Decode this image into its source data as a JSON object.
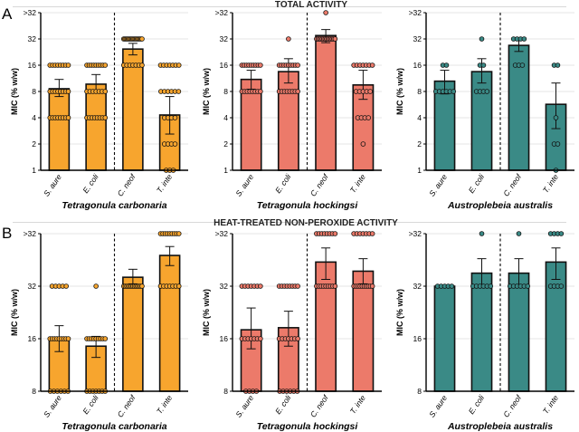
{
  "figure": {
    "row_a_letter": "A",
    "row_b_letter": "B",
    "row_a_title": "TOTAL ACTIVITY",
    "row_b_title": "HEAT-TREATED NON-PEROXIDE ACTIVITY"
  },
  "colors": {
    "orange": "#F7A52E",
    "salmon": "#EC7A6A",
    "teal": "#3A8A86"
  },
  "chart_data": [
    {
      "type": "bar",
      "row": "A",
      "species": "Tetragonula carbonaria",
      "color_key": "orange",
      "ylabel": "MIC (% w/w)",
      "scale": "log2",
      "yticks": [
        "1",
        "2",
        "4",
        "8",
        "16",
        "32",
        ">32"
      ],
      "ytick_values": [
        1,
        2,
        4,
        8,
        16,
        32,
        64
      ],
      "categories": [
        "S. aure",
        "E. coli",
        "C. neof",
        "T. inte"
      ],
      "values": [
        8.6,
        9.7,
        24.5,
        4.3
      ],
      "errors": [
        [
          7,
          11
        ],
        [
          8,
          12.5
        ],
        [
          21,
          28.5
        ],
        [
          2.6,
          7
        ]
      ],
      "points": [
        [
          16,
          16,
          16,
          16,
          16,
          16,
          16,
          16,
          8,
          8,
          8,
          8,
          8,
          8,
          8,
          8,
          4,
          4,
          4,
          4,
          4,
          4,
          4,
          4
        ],
        [
          16,
          16,
          16,
          16,
          16,
          16,
          16,
          16,
          16,
          8,
          8,
          8,
          8,
          8,
          8,
          8,
          4,
          4,
          4,
          4,
          4,
          4,
          4,
          4
        ],
        [
          32,
          32,
          32,
          32,
          32,
          32,
          32,
          32,
          32,
          32,
          32,
          32,
          32,
          32,
          32,
          32,
          32,
          16,
          16,
          16,
          16,
          16,
          16,
          16
        ],
        [
          16,
          16,
          16,
          16,
          16,
          16,
          16,
          8,
          8,
          8,
          8,
          8,
          8,
          4,
          4,
          4,
          4,
          2,
          2,
          2,
          2,
          1,
          1,
          1
        ]
      ],
      "divider_after": 2
    },
    {
      "type": "bar",
      "row": "A",
      "species": "Tetragonula hockingsi",
      "color_key": "salmon",
      "ylabel": "MIC (% w/w)",
      "scale": "log2",
      "yticks": [
        "1",
        "2",
        "4",
        "8",
        "16",
        "32",
        ">32"
      ],
      "ytick_values": [
        1,
        2,
        4,
        8,
        16,
        32,
        64
      ],
      "categories": [
        "S. aure",
        "E. coli",
        "C. neof",
        "T. inte"
      ],
      "values": [
        11,
        13.5,
        35,
        9.5
      ],
      "errors": [
        [
          8.5,
          14
        ],
        [
          10,
          19
        ],
        [
          29,
          41
        ],
        [
          6.5,
          14
        ]
      ],
      "points": [
        [
          16,
          16,
          16,
          16,
          16,
          16,
          16,
          16,
          16,
          8,
          8,
          8,
          8,
          8,
          8,
          8,
          8
        ],
        [
          32,
          16,
          16,
          16,
          16,
          16,
          16,
          16,
          16,
          16,
          8,
          8,
          8,
          8,
          8,
          8,
          8,
          8
        ],
        [
          64,
          32,
          32,
          32,
          32,
          32,
          32,
          32,
          32,
          32,
          32,
          32,
          32,
          32,
          32
        ],
        [
          16,
          16,
          16,
          16,
          16,
          16,
          16,
          8,
          8,
          8,
          8,
          8,
          4,
          4,
          4,
          4,
          2
        ]
      ],
      "divider_after": 2
    },
    {
      "type": "bar",
      "row": "A",
      "species": "Austroplebeia australis",
      "color_key": "teal",
      "ylabel": "MIC (% w/w)",
      "scale": "log2",
      "yticks": [
        "1",
        "2",
        "4",
        "8",
        "16",
        "32",
        ">32"
      ],
      "ytick_values": [
        1,
        2,
        4,
        8,
        16,
        32,
        64
      ],
      "categories": [
        "S. aure",
        "E. coli",
        "C. neof",
        "T. inte"
      ],
      "values": [
        10.5,
        13.5,
        27,
        5.7
      ],
      "errors": [
        [
          7.5,
          14
        ],
        [
          10,
          19
        ],
        [
          23,
          32
        ],
        [
          3,
          10
        ]
      ],
      "points": [
        [
          16,
          16,
          8,
          8,
          8,
          8,
          8,
          8
        ],
        [
          32,
          16,
          16,
          8,
          8,
          8,
          8
        ],
        [
          32,
          32,
          32,
          32,
          16,
          16,
          16
        ],
        [
          16,
          16,
          4,
          2,
          2,
          1
        ]
      ],
      "divider_after": 2
    },
    {
      "type": "bar",
      "row": "B",
      "species": "Tetragonula carbonaria",
      "color_key": "orange",
      "ylabel": "MIC (% w/w)",
      "scale": "log2",
      "yticks": [
        "8",
        "16",
        "32",
        ">32"
      ],
      "ytick_values": [
        8,
        16,
        32,
        64
      ],
      "categories": [
        "S. aure",
        "E. coli",
        "C. neof",
        "T. inte"
      ],
      "values": [
        16,
        14.5,
        36,
        48
      ],
      "errors": [
        [
          13.5,
          19
        ],
        [
          12.5,
          16.5
        ],
        [
          33,
          40
        ],
        [
          42,
          54
        ]
      ],
      "points": [
        [
          32,
          32,
          32,
          32,
          32,
          16,
          16,
          16,
          16,
          16,
          16,
          16,
          16,
          16,
          8,
          8,
          8,
          8,
          8,
          8
        ],
        [
          32,
          16,
          16,
          16,
          16,
          16,
          16,
          16,
          16,
          16,
          8,
          8,
          8,
          8,
          8,
          8,
          8
        ],
        [
          32,
          32,
          32,
          32,
          32,
          32,
          32,
          32,
          32,
          32,
          32,
          32,
          32
        ],
        [
          64,
          64,
          64,
          64,
          64,
          64,
          64,
          64,
          64,
          32,
          32,
          32,
          32,
          32,
          32,
          32
        ]
      ],
      "divider_after": 2
    },
    {
      "type": "bar",
      "row": "B",
      "species": "Tetragonula hockingsi",
      "color_key": "salmon",
      "ylabel": "MIC (% w/w)",
      "scale": "log2",
      "yticks": [
        "8",
        "16",
        "32",
        ">32"
      ],
      "ytick_values": [
        8,
        16,
        32,
        64
      ],
      "categories": [
        "S. aure",
        "E. coli",
        "C. neof",
        "T. inte"
      ],
      "values": [
        18,
        18.5,
        44,
        39
      ],
      "errors": [
        [
          14,
          24
        ],
        [
          14.5,
          23
        ],
        [
          35,
          53
        ],
        [
          33,
          46
        ]
      ],
      "points": [
        [
          32,
          32,
          32,
          32,
          32,
          32,
          32,
          16,
          16,
          16,
          16,
          16,
          16,
          16,
          8,
          8,
          8,
          8
        ],
        [
          32,
          32,
          32,
          32,
          32,
          32,
          32,
          32,
          16,
          16,
          16,
          16,
          16,
          16,
          16,
          8,
          8,
          8,
          8,
          8,
          8
        ],
        [
          64,
          64,
          64,
          64,
          64,
          64,
          64,
          64,
          32,
          32,
          32,
          32,
          32,
          32,
          32,
          32,
          32
        ],
        [
          64,
          64,
          64,
          64,
          64,
          64,
          64,
          32,
          32,
          32,
          32,
          32,
          32,
          32,
          32,
          32,
          32
        ]
      ],
      "divider_after": 2
    },
    {
      "type": "bar",
      "row": "B",
      "species": "Austroplebeia australis",
      "color_key": "teal",
      "ylabel": "MIC (% w/w)",
      "scale": "log2",
      "yticks": [
        "8",
        "16",
        "32",
        ">32"
      ],
      "ytick_values": [
        8,
        16,
        32,
        64
      ],
      "categories": [
        "S. aure",
        "E. coli",
        "C. neof",
        "T. inte"
      ],
      "values": [
        32,
        38,
        38,
        44
      ],
      "errors": [
        null,
        [
          32,
          46
        ],
        [
          32,
          46
        ],
        [
          35,
          53
        ]
      ],
      "points": [
        [
          32,
          32,
          32,
          32,
          32
        ],
        [
          64,
          32,
          32,
          32,
          32,
          32,
          32
        ],
        [
          64,
          32,
          32,
          32,
          32,
          32,
          32
        ],
        [
          64,
          64,
          64,
          64,
          32,
          32,
          32,
          32
        ]
      ],
      "divider_after": 2
    }
  ]
}
